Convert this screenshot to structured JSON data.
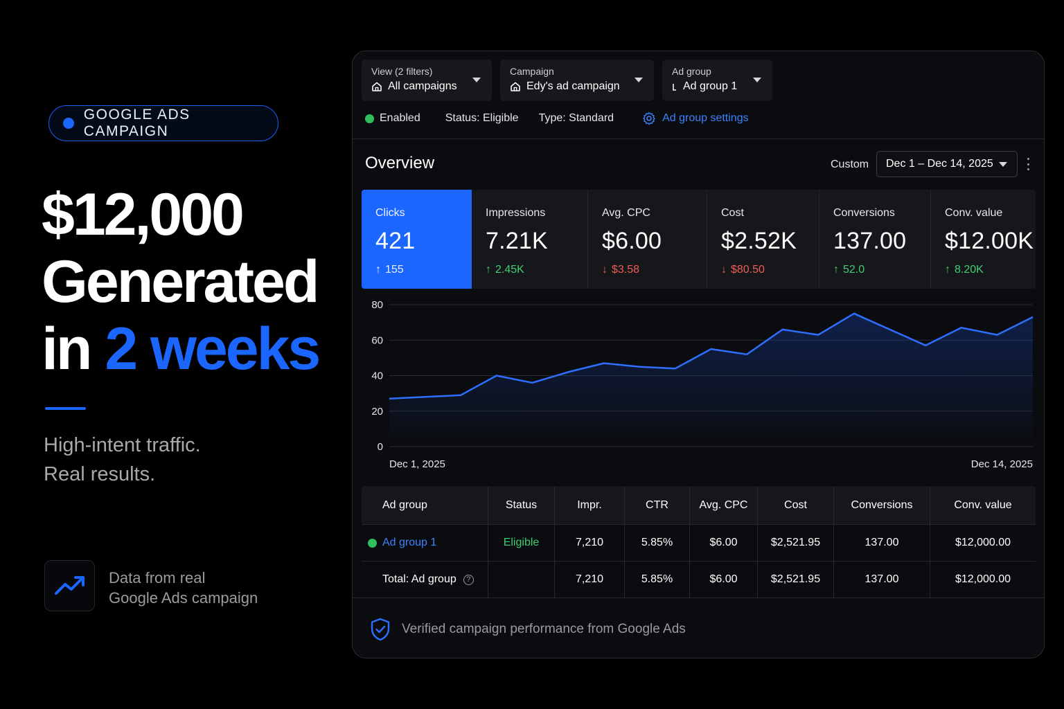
{
  "promo": {
    "badge": "GOOGLE ADS CAMPAIGN",
    "headline_line1": "$12,000",
    "headline_line2": "Generated",
    "headline_line3_prefix": "in ",
    "headline_line3_highlight": "2 weeks",
    "tagline_line1": "High-intent traffic.",
    "tagline_line2": "Real results.",
    "source_line1": "Data from real",
    "source_line2": "Google Ads campaign",
    "source_icon": "trending-up-icon",
    "accent_color": "#1a66ff"
  },
  "filters": {
    "view": {
      "label": "View (2 filters)",
      "value": "All campaigns",
      "icon": "home-icon"
    },
    "campaign": {
      "label": "Campaign",
      "value": "Edy's ad campaign",
      "icon": "home-icon"
    },
    "ad_group": {
      "label": "Ad group",
      "value": "Ad group 1",
      "icon": "ad-group-icon"
    }
  },
  "status": {
    "enabled": "Enabled",
    "status": "Status: Eligible",
    "type": "Type: Standard",
    "settings_link": "Ad group settings"
  },
  "overview": {
    "title": "Overview",
    "range_label": "Custom",
    "date_range": "Dec 1 – Dec 14, 2025"
  },
  "metrics": [
    {
      "label": "Clicks",
      "value": "421",
      "delta": "155",
      "direction": "up",
      "active": true
    },
    {
      "label": "Impressions",
      "value": "7.21K",
      "delta": "2.45K",
      "direction": "up",
      "active": false
    },
    {
      "label": "Avg. CPC",
      "value": "$6.00",
      "delta": "$3.58",
      "direction": "down",
      "active": false
    },
    {
      "label": "Cost",
      "value": "$2.52K",
      "delta": "$80.50",
      "direction": "down",
      "active": false
    },
    {
      "label": "Conversions",
      "value": "137.00",
      "delta": "52.0",
      "direction": "up",
      "active": false
    },
    {
      "label": "Conv. value",
      "value": "$12.00K",
      "delta": "8.20K",
      "direction": "up",
      "active": false
    }
  ],
  "chart_data": {
    "type": "area",
    "x_start_label": "Dec 1, 2025",
    "x_end_label": "Dec 14, 2025",
    "yticks": [
      80,
      60,
      40,
      20,
      0
    ],
    "ylim": [
      0,
      80
    ],
    "values": [
      27,
      28,
      29,
      40,
      36,
      42,
      47,
      45,
      44,
      55,
      52,
      66,
      63,
      75,
      66,
      57,
      67,
      63,
      73
    ],
    "line_color": "#2f6fff"
  },
  "table": {
    "headers": [
      "Ad group",
      "Status",
      "Impr.",
      "CTR",
      "Avg. CPC",
      "Cost",
      "Conversions",
      "Conv. value"
    ],
    "row": {
      "ad_group": "Ad group 1",
      "status": "Eligible",
      "impr": "7,210",
      "ctr": "5.85%",
      "cpc": "$6.00",
      "cost": "$2,521.95",
      "conversions": "137.00",
      "conv_value": "$12,000.00"
    },
    "total": {
      "label": "Total: Ad group",
      "help": "?",
      "status": "",
      "impr": "7,210",
      "ctr": "5.85%",
      "cpc": "$6.00",
      "cost": "$2,521.95",
      "conversions": "137.00",
      "conv_value": "$12,000.00"
    }
  },
  "footer": {
    "verified_text": "Verified campaign performance from Google Ads",
    "icon": "shield-check-icon"
  }
}
